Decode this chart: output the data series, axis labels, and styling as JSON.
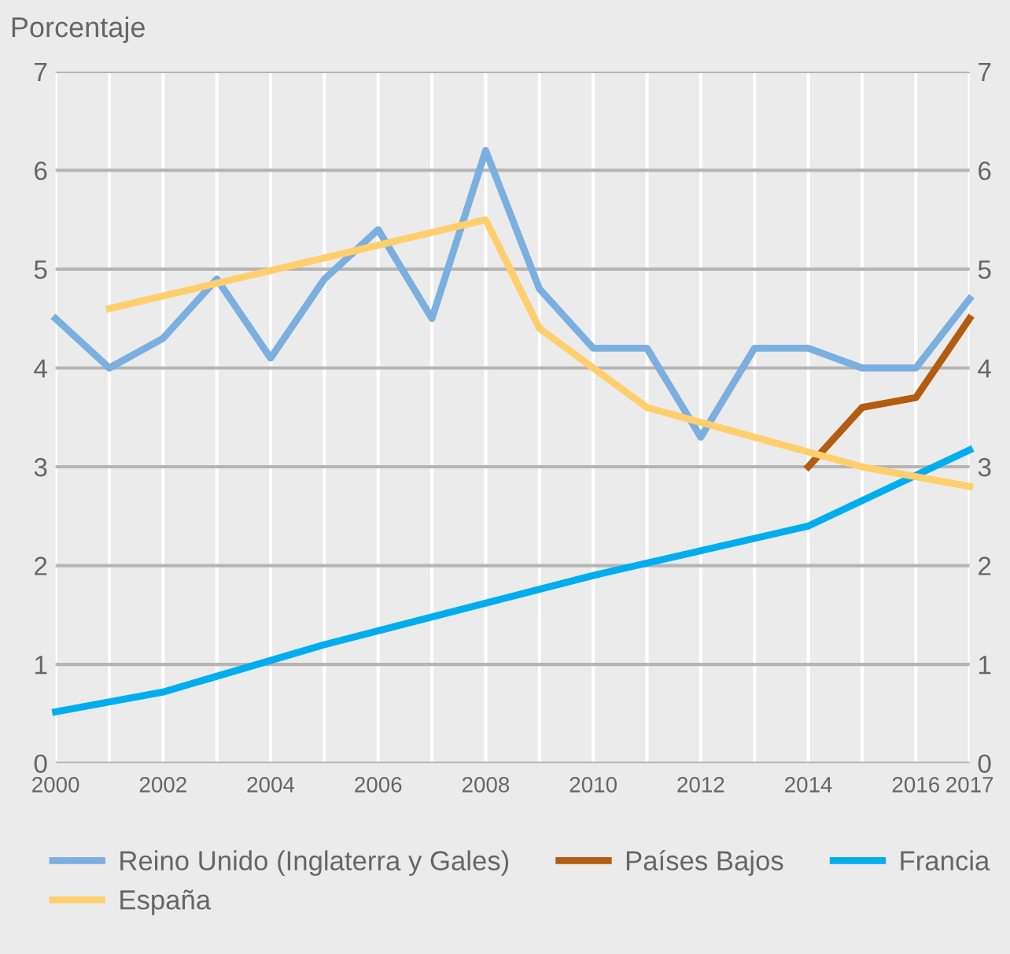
{
  "chart_data": {
    "type": "line",
    "ylabel": "Porcentaje",
    "x": [
      2000,
      2001,
      2002,
      2003,
      2004,
      2005,
      2006,
      2007,
      2008,
      2009,
      2010,
      2011,
      2012,
      2013,
      2014,
      2015,
      2016,
      2017
    ],
    "series": [
      {
        "name": "Reino Unido (Inglaterra y Gales)",
        "color": "#7aafe0",
        "values": [
          4.5,
          4.0,
          4.3,
          4.9,
          4.1,
          4.9,
          5.4,
          4.5,
          6.2,
          4.8,
          4.2,
          4.2,
          3.3,
          4.2,
          4.2,
          4.0,
          4.0,
          4.7
        ]
      },
      {
        "name": "Países Bajos",
        "color": "#b35c10",
        "x": [
          2014,
          2015,
          2016,
          2017
        ],
        "values": [
          3.0,
          3.6,
          3.7,
          4.5
        ]
      },
      {
        "name": "Francia",
        "color": "#00aeef",
        "x": [
          2000,
          2002,
          2005,
          2010,
          2014,
          2017
        ],
        "values": [
          0.52,
          0.72,
          1.2,
          1.9,
          2.4,
          3.17
        ]
      },
      {
        "name": "España",
        "color": "#ffcf6e",
        "x": [
          2001,
          2008,
          2009,
          2010,
          2011,
          2015,
          2017
        ],
        "values": [
          4.6,
          5.5,
          4.4,
          4.0,
          3.6,
          3.0,
          2.8
        ]
      }
    ],
    "xlim": [
      2000,
      2017
    ],
    "xticks": [
      2000,
      {
        "value": 2001,
        "label": null
      },
      2002,
      {
        "value": 2003,
        "label": null
      },
      2004,
      {
        "value": 2005,
        "label": null
      },
      2006,
      {
        "value": 2007,
        "label": null
      },
      2008,
      {
        "value": 2009,
        "label": null
      },
      2010,
      {
        "value": 2011,
        "label": null
      },
      2012,
      {
        "value": 2013,
        "label": null
      },
      2014,
      {
        "value": 2015,
        "label": null
      },
      2016,
      2017
    ],
    "ylim": [
      0,
      7
    ],
    "yticks": [
      0,
      1,
      2,
      3,
      4,
      5,
      6,
      7
    ],
    "y2lim": [
      0,
      7
    ],
    "y2ticks": [
      0,
      1,
      2,
      3,
      4,
      5,
      6,
      7
    ],
    "grid": true,
    "legend": "bottom",
    "marker": "none",
    "line_style": "solid"
  }
}
